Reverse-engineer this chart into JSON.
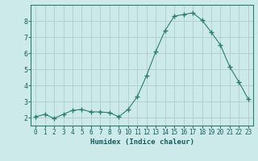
{
  "x": [
    0,
    1,
    2,
    3,
    4,
    5,
    6,
    7,
    8,
    9,
    10,
    11,
    12,
    13,
    14,
    15,
    16,
    17,
    18,
    19,
    20,
    21,
    22,
    23
  ],
  "y": [
    2.05,
    2.2,
    1.95,
    2.2,
    2.45,
    2.5,
    2.35,
    2.35,
    2.3,
    2.05,
    2.5,
    3.3,
    4.6,
    6.1,
    7.4,
    8.3,
    8.4,
    8.5,
    8.05,
    7.3,
    6.5,
    5.15,
    4.2,
    3.15
  ],
  "line_color": "#2d7d6e",
  "marker": "+",
  "marker_size": 4,
  "bg_color": "#cceaea",
  "grid_color": "#b0cccc",
  "spine_color": "#2d7d6e",
  "xlabel": "Humidex (Indice chaleur)",
  "xlim": [
    -0.5,
    23.5
  ],
  "ylim": [
    1.5,
    9.0
  ],
  "yticks": [
    2,
    3,
    4,
    5,
    6,
    7,
    8
  ],
  "xticks": [
    0,
    1,
    2,
    3,
    4,
    5,
    6,
    7,
    8,
    9,
    10,
    11,
    12,
    13,
    14,
    15,
    16,
    17,
    18,
    19,
    20,
    21,
    22,
    23
  ],
  "font_color": "#1a5c5c",
  "xlabel_fontsize": 6.5,
  "tick_fontsize": 5.5
}
